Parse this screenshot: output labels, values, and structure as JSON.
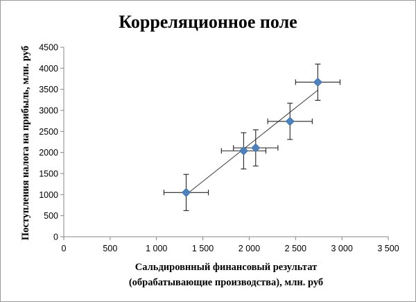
{
  "chart_data": {
    "type": "scatter",
    "title": "Корреляционное поле",
    "xlabel_lines": [
      "Сальдировнный финансовый результат",
      "(обрабатывающие производства), млн. руб"
    ],
    "ylabel": "Поступления налога на прибыль, млн. руб",
    "xlim": [
      0,
      3500
    ],
    "ylim": [
      0,
      4500
    ],
    "x_ticks": [
      0,
      500,
      1000,
      1500,
      2000,
      2500,
      3000,
      3500
    ],
    "x_tick_labels": [
      "0",
      "500",
      "1 000",
      "1 500",
      "2 000",
      "2 500",
      "3 000",
      "3 500"
    ],
    "y_ticks": [
      0,
      500,
      1000,
      1500,
      2000,
      2500,
      3000,
      3500,
      4000,
      4500
    ],
    "y_tick_labels": [
      "0",
      "500",
      "1000",
      "1500",
      "2000",
      "2500",
      "3000",
      "3500",
      "4000",
      "4500"
    ],
    "grid": false,
    "marker": "diamond",
    "marker_color": "#4f81bd",
    "series": [
      {
        "x": [
          1320,
          1940,
          2070,
          2440,
          2740
        ],
        "y": [
          1050,
          2040,
          2110,
          2740,
          3670
        ],
        "x_err": [
          240,
          240,
          240,
          240,
          240
        ],
        "y_err": [
          430,
          430,
          430,
          430,
          430
        ]
      }
    ],
    "trendline": {
      "x": [
        1320,
        2740
      ],
      "y": [
        1000,
        3480
      ]
    }
  }
}
